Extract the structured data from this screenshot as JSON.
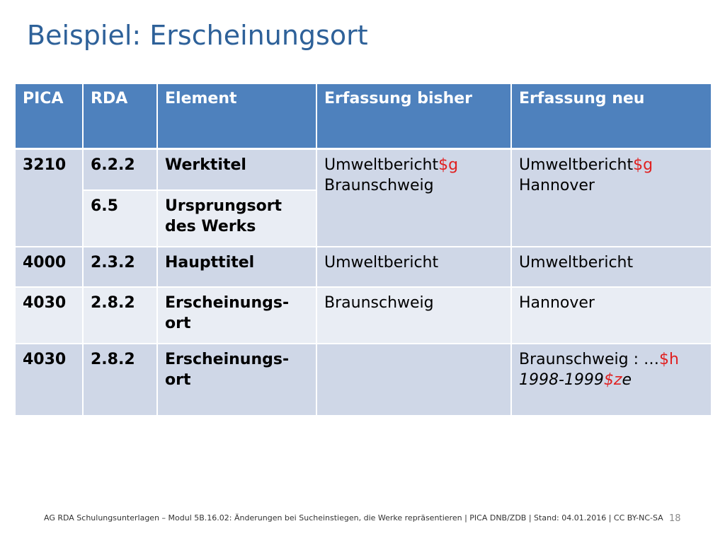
{
  "slide": {
    "title": "Beispiel: Erscheinungsort",
    "page_number": "18",
    "footer": "AG RDA Schulungsunterlagen – Modul 5B.16.02: Änderungen bei Sucheinstiegen, die Werke repräsentieren | PICA DNB/ZDB | Stand: 04.01.2016 | CC BY-NC-SA"
  },
  "table": {
    "headers": [
      "PICA",
      "RDA",
      "Element",
      "Erfassung bisher",
      "Erfassung neu"
    ],
    "rows": [
      {
        "pica": "3210",
        "rda": "6.2.2",
        "element": "Werktitel",
        "bisher_a": "Umweltbericht",
        "bisher_code": "$g",
        "bisher_b": "Braunschweig",
        "neu_a": "Umweltbericht",
        "neu_code": "$g",
        "neu_b": "Hannover"
      },
      {
        "rda": "6.5",
        "element": "Ursprungsort des Werks"
      },
      {
        "pica": "4000",
        "rda": "2.3.2",
        "element": "Haupttitel",
        "bisher": "Umweltbericht",
        "neu": "Umweltbericht"
      },
      {
        "pica": "4030",
        "rda": "2.8.2",
        "element_a": "Erscheinungs-",
        "element_b": "ort",
        "bisher": "Braunschweig",
        "neu": "Hannover"
      },
      {
        "pica": "4030",
        "rda": "2.8.2",
        "element_a": "Erscheinungs-",
        "element_b": "ort",
        "bisher": "",
        "neu_a": "Braunschweig : …",
        "neu_code1": "$h",
        "neu_b": "1998-1999",
        "neu_code2": "$z",
        "neu_c": "e"
      }
    ]
  },
  "colors": {
    "title": "#2e6199",
    "header_bg": "#4e81bd",
    "row_dark": "#cfd7e7",
    "row_light": "#e9edf4",
    "subfield_code": "#e02020"
  }
}
